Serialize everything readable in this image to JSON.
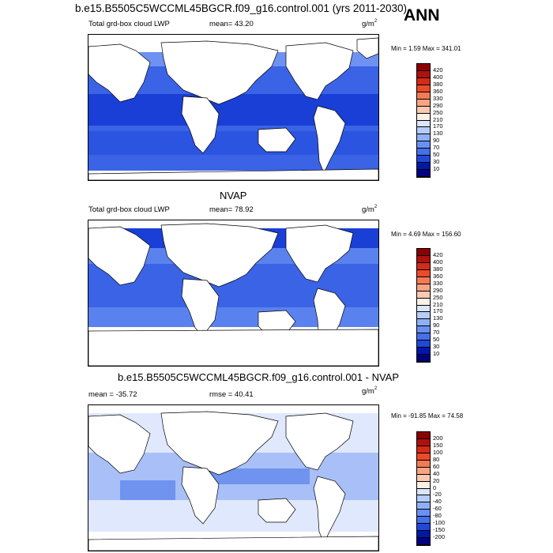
{
  "header": {
    "run_title": "b.e15.B5505C5WCCML45BGCR.f09_g16.control.001 (yrs 2011-2030)",
    "season": "ANN"
  },
  "colors": {
    "ocean_dark": "#1a3fd6",
    "ocean_mid": "#3a63e6",
    "ocean_light": "#6e92f2",
    "diff_pale": "#dfe8fc",
    "diff_light": "#a8c0f7",
    "diff_mid": "#6f93ee",
    "land": "#ffffff"
  },
  "panels": [
    {
      "name": "model",
      "variable_label": "Total grd-box cloud LWP",
      "mean_label": "mean=  43.20",
      "units": "g/m",
      "units_sup": "2",
      "minmax": "Min =   1.59 Max = 341.01",
      "colorbar": {
        "labels": [
          "420",
          "400",
          "380",
          "360",
          "330",
          "290",
          "250",
          "210",
          "170",
          "130",
          "90",
          "70",
          "50",
          "30",
          "10"
        ],
        "colors": [
          "#8b0000",
          "#b01010",
          "#d42a18",
          "#ec4a2a",
          "#f47a56",
          "#f8a483",
          "#fbc9b2",
          "#fff0e6",
          "#d9e6fd",
          "#b6ccfa",
          "#8fb0f6",
          "#6a90f1",
          "#4570ea",
          "#2148d8",
          "#0018a8",
          "#000080"
        ]
      }
    },
    {
      "name": "obs",
      "panel_title": "NVAP",
      "variable_label": "Total grd-box cloud LWP",
      "mean_label": "mean=  78.92",
      "units": "g/m",
      "units_sup": "2",
      "minmax": "Min =   4.69 Max = 156.60",
      "colorbar": {
        "labels": [
          "420",
          "400",
          "380",
          "360",
          "330",
          "290",
          "250",
          "210",
          "170",
          "130",
          "90",
          "70",
          "50",
          "30",
          "10"
        ],
        "colors": [
          "#8b0000",
          "#b01010",
          "#d42a18",
          "#ec4a2a",
          "#f47a56",
          "#f8a483",
          "#fbc9b2",
          "#fff0e6",
          "#d9e6fd",
          "#b6ccfa",
          "#8fb0f6",
          "#6a90f1",
          "#4570ea",
          "#2148d8",
          "#0018a8",
          "#000080"
        ]
      }
    },
    {
      "name": "diff",
      "panel_title": "b.e15.B5505C5WCCML45BGCR.f09_g16.control.001 - NVAP",
      "mean_label": "mean = -35.72",
      "rmse_label": "rmse =  40.41",
      "units": "g/m",
      "units_sup": "2",
      "minmax": "Min = -91.85 Max =  74.58",
      "colorbar": {
        "labels": [
          "200",
          "150",
          "100",
          "80",
          "60",
          "40",
          "20",
          "0",
          "-20",
          "-40",
          "-60",
          "-80",
          "-100",
          "-150",
          "-200"
        ],
        "colors": [
          "#8b0000",
          "#b01010",
          "#d42a18",
          "#ec4a2a",
          "#f47a56",
          "#f8a483",
          "#fbc9b2",
          "#fff0e6",
          "#d9e6fd",
          "#b6ccfa",
          "#8fb0f6",
          "#6a90f1",
          "#4570ea",
          "#2148d8",
          "#0018a8",
          "#000080"
        ]
      }
    }
  ]
}
